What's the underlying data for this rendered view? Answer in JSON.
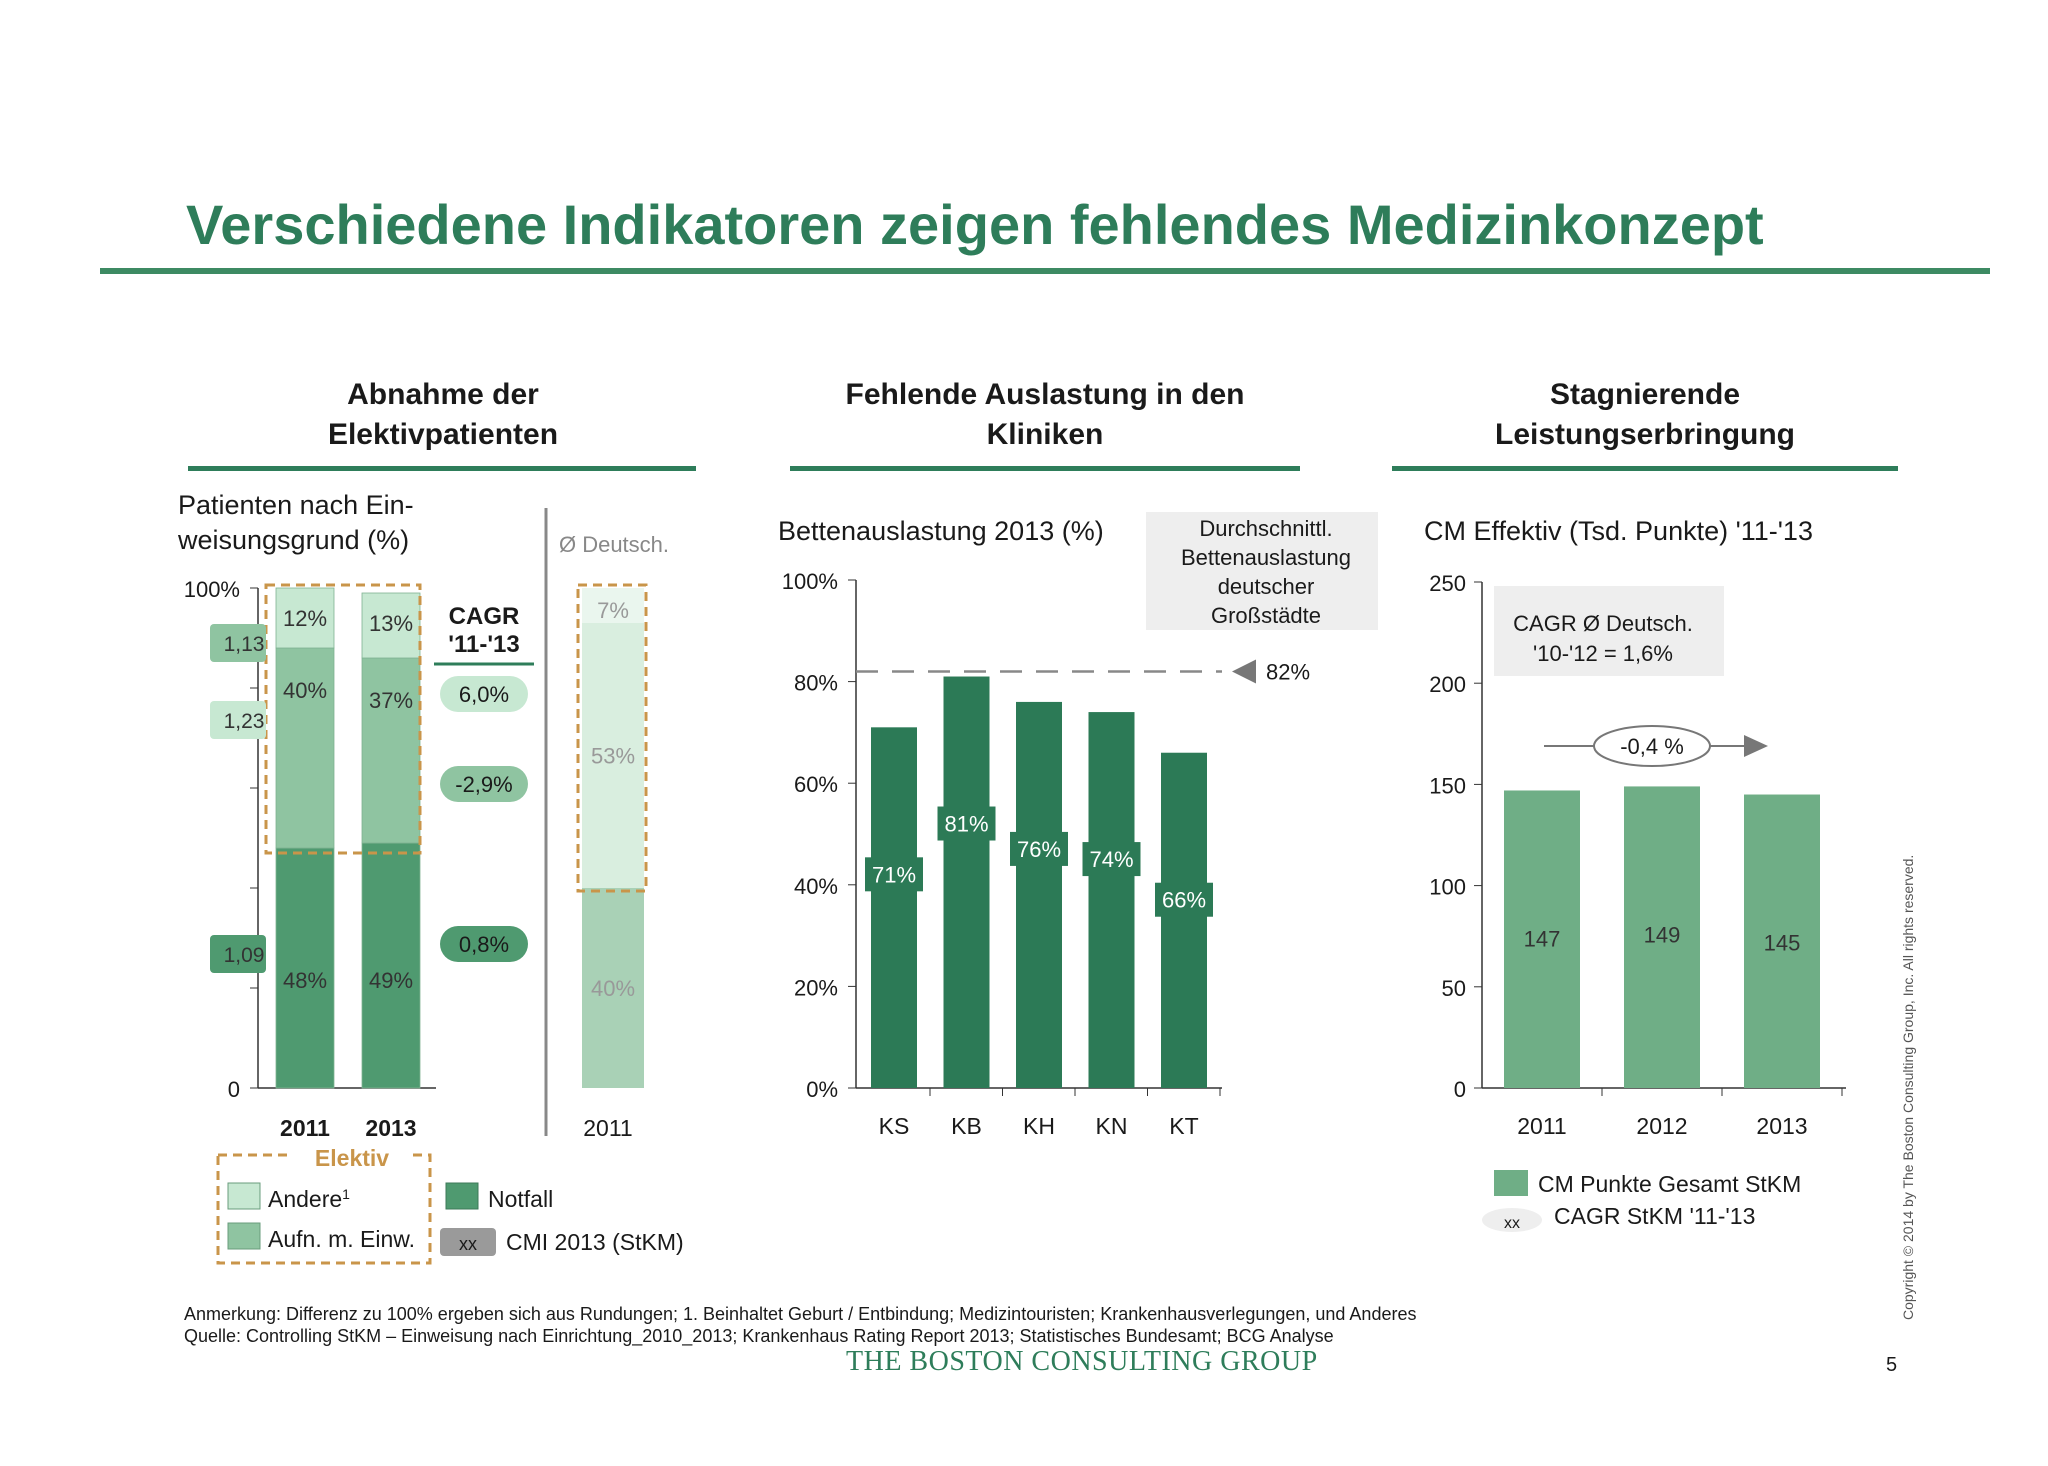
{
  "title": "Verschiedene Indikatoren zeigen fehlendes Medizinkonzept",
  "colors": {
    "dark_green": "#2e7d5a",
    "mid_green": "#6fae86",
    "light_green": "#c7e8d2",
    "bar_green": "#2c7a56",
    "cm_green": "#6fae86",
    "orange": "#c9954a",
    "grey": "#9a9a9a"
  },
  "page_number": "5",
  "copyright": "Copyright © 2014 by The Boston Consulting Group, Inc. All rights reserved.",
  "footnotes": {
    "note": "Anmerkung: Differenz zu 100% ergeben sich aus Rundungen; 1. Beinhaltet Geburt / Entbindung; Medizintouristen; Krankenhausverlegungen, und Anderes",
    "source": "Quelle: Controlling StKM – Einweisung nach Einrichtung_2010_2013; Krankenhaus Rating Report 2013; Statistisches Bundesamt; BCG Analyse"
  },
  "brand": "THE BOSTON CONSULTING GROUP",
  "panels": [
    {
      "heading": [
        "Abnahme der",
        "Elektivpatienten"
      ]
    },
    {
      "heading": [
        "Fehlende Auslastung in den",
        "Kliniken"
      ]
    },
    {
      "heading": [
        "Stagnierende",
        "Leistungserbringung"
      ]
    }
  ],
  "chart_data": [
    {
      "type": "bar",
      "stacked": true,
      "title": "Patienten nach Ein-weisungsgrund (%)",
      "title_lines": [
        "Patienten nach Ein-",
        "weisungsgrund (%)"
      ],
      "categories": [
        "2011",
        "2013"
      ],
      "ylim": [
        0,
        100
      ],
      "y_ticks": [
        "0",
        "100%"
      ],
      "series": [
        {
          "name": "Notfall",
          "values": [
            48,
            49
          ],
          "labels": [
            "48%",
            "49%"
          ],
          "cmi": "1,09",
          "cagr": "0,8%"
        },
        {
          "name": "Aufn. m. Einw.",
          "values": [
            40,
            37
          ],
          "labels": [
            "40%",
            "37%"
          ],
          "cmi": "1,13",
          "cagr": "-2,9%"
        },
        {
          "name": "Andere¹",
          "values": [
            12,
            13
          ],
          "labels": [
            "12%",
            "13%"
          ],
          "cmi": "1,23",
          "cagr": "6,0%"
        }
      ],
      "cagr_header": [
        "CAGR",
        "'11-'13"
      ],
      "elektiv_label": "Elektiv",
      "comparison": {
        "header": "Ø Deutsch.",
        "category": "2011",
        "values": [
          40,
          53,
          7
        ],
        "labels": [
          "40%",
          "53%",
          "7%"
        ]
      },
      "legend": [
        {
          "label": "Andere",
          "sup": "1",
          "color": "#c7e8d2"
        },
        {
          "label": "Aufn. m. Einw.",
          "color": "#8fc4a1"
        },
        {
          "label": "Notfall",
          "color": "#4f9a70"
        },
        {
          "label": "CMI 2013 (StKM)",
          "swatch_text": "xx",
          "color": "#9a9a9a"
        }
      ]
    },
    {
      "type": "bar",
      "title": "Bettenauslastung 2013 (%)",
      "categories": [
        "KS",
        "KB",
        "KH",
        "KN",
        "KT"
      ],
      "values": [
        71,
        81,
        76,
        74,
        66
      ],
      "labels": [
        "71%",
        "81%",
        "76%",
        "74%",
        "66%"
      ],
      "ylim": [
        0,
        100
      ],
      "y_ticks": [
        "0%",
        "20%",
        "40%",
        "60%",
        "80%",
        "100%"
      ],
      "reference": {
        "value": 82,
        "label": "82%",
        "caption": [
          "Durchschnittl.",
          "Bettenauslastung",
          "deutscher",
          "Großstädte"
        ]
      }
    },
    {
      "type": "bar",
      "title": "CM Effektiv (Tsd. Punkte) '11-'13",
      "categories": [
        "2011",
        "2012",
        "2013"
      ],
      "values": [
        147,
        149,
        145
      ],
      "labels": [
        "147",
        "149",
        "145"
      ],
      "ylim": [
        0,
        250
      ],
      "y_ticks": [
        "0",
        "50",
        "100",
        "150",
        "200",
        "250"
      ],
      "cagr_note": [
        "CAGR Ø Deutsch.",
        "'10-'12 = 1,6%"
      ],
      "cagr_arrow": "-0,4 %",
      "legend": [
        {
          "label": "CM Punkte Gesamt StKM",
          "color": "#6fae86"
        },
        {
          "label": "CAGR StKM '11-'13",
          "swatch_text": "xx"
        }
      ]
    }
  ]
}
